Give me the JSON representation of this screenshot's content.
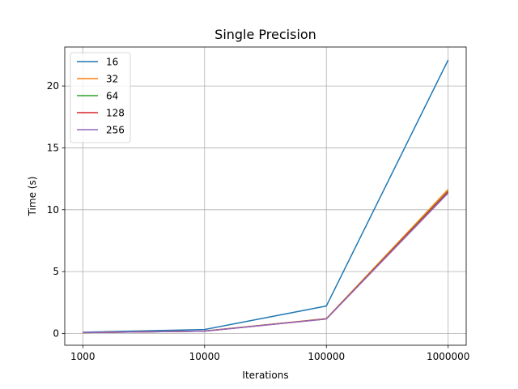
{
  "chart_data": {
    "type": "line",
    "title": "Single Precision",
    "xlabel": "Iterations",
    "ylabel": "Time (s)",
    "categories": [
      "1000",
      "10000",
      "100000",
      "1000000"
    ],
    "yticks": [
      0,
      5,
      10,
      15,
      20
    ],
    "ylim": [
      -0.95,
      23.15
    ],
    "grid": true,
    "legend_position": "top-left",
    "series": [
      {
        "name": "16",
        "color": "#1f77b4",
        "values": [
          0.1,
          0.32,
          2.22,
          22.1
        ]
      },
      {
        "name": "32",
        "color": "#ff7f0e",
        "values": [
          0.07,
          0.2,
          1.2,
          11.65
        ]
      },
      {
        "name": "64",
        "color": "#2ca02c",
        "values": [
          0.07,
          0.19,
          1.18,
          11.5
        ]
      },
      {
        "name": "128",
        "color": "#d62728",
        "values": [
          0.07,
          0.19,
          1.18,
          11.45
        ]
      },
      {
        "name": "256",
        "color": "#9467bd",
        "values": [
          0.07,
          0.19,
          1.17,
          11.35
        ]
      }
    ]
  }
}
